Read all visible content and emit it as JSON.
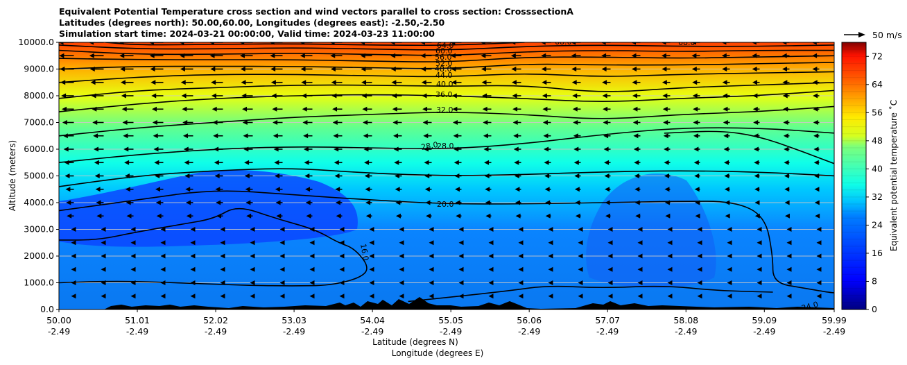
{
  "title_lines": [
    "Equivalent Potential Temperature cross section and wind vectors parallel to cross section: CrosssectionA",
    "Latitudes (degrees north): 50.00,60.00, Longitudes (degrees east): -2.50,-2.50",
    "Simulation start time: 2024-03-21 00:00:00, Valid time: 2024-03-23 11:00:00"
  ],
  "chart_data": {
    "type": "heatmap",
    "xlabel_lines": [
      "Latitude (degrees N)",
      "Longitude (degrees E)"
    ],
    "ylabel": "Altitude (meters)",
    "x_ticks": [
      {
        "lat": "50.00",
        "lon": "-2.49"
      },
      {
        "lat": "51.01",
        "lon": "-2.49"
      },
      {
        "lat": "52.02",
        "lon": "-2.49"
      },
      {
        "lat": "53.03",
        "lon": "-2.49"
      },
      {
        "lat": "54.04",
        "lon": "-2.49"
      },
      {
        "lat": "55.05",
        "lon": "-2.49"
      },
      {
        "lat": "56.06",
        "lon": "-2.49"
      },
      {
        "lat": "57.07",
        "lon": "-2.49"
      },
      {
        "lat": "58.08",
        "lon": "-2.49"
      },
      {
        "lat": "59.09",
        "lon": "-2.49"
      },
      {
        "lat": "59.99",
        "lon": "-2.49"
      }
    ],
    "y_ticks": [
      "0.0",
      "1000.0",
      "2000.0",
      "3000.0",
      "4000.0",
      "5000.0",
      "6000.0",
      "7000.0",
      "8000.0",
      "9000.0",
      "10000.0"
    ],
    "ylim": [
      0,
      10000
    ],
    "grid": "horizontal",
    "colorbar": {
      "label": "Equivalent potential temperature ˚C",
      "ticks": [
        "0",
        "8",
        "16",
        "24",
        "32",
        "40",
        "48",
        "56",
        "64",
        "72"
      ],
      "range": [
        0,
        76
      ],
      "colormap": "jet"
    },
    "quiver_key": {
      "label": "50 m/s"
    },
    "contour_labels": [
      "64.0",
      "60.0",
      "56.0",
      "52.0",
      "48.0",
      "44.0",
      "40.0",
      "36.0",
      "32.0",
      "28.0",
      "20.0",
      "16.0",
      "24.0",
      "68.0"
    ],
    "contour_profiles": [
      {
        "level": 16,
        "points": [
          [
            50.0,
            1000
          ],
          [
            50.5,
            1050
          ],
          [
            51.0,
            1050
          ],
          [
            51.5,
            1000
          ],
          [
            52.0,
            950
          ],
          [
            52.5,
            900
          ],
          [
            53.0,
            880
          ],
          [
            53.5,
            900
          ],
          [
            53.9,
            1200
          ],
          [
            54.0,
            1600
          ],
          [
            53.8,
            2300
          ],
          [
            53.6,
            2500
          ],
          [
            53.3,
            3000
          ],
          [
            52.8,
            3400
          ],
          [
            52.3,
            3900
          ],
          [
            52.0,
            3400
          ],
          [
            51.6,
            3200
          ],
          [
            51.0,
            2900
          ],
          [
            50.5,
            2600
          ],
          [
            50.0,
            2600
          ]
        ]
      },
      {
        "level": 20,
        "points": [
          [
            50.0,
            3700
          ],
          [
            51.0,
            4100
          ],
          [
            52.0,
            4500
          ],
          [
            53.0,
            4300
          ],
          [
            54.0,
            4100
          ],
          [
            55.0,
            3950
          ],
          [
            56.0,
            3950
          ],
          [
            57.0,
            4000
          ],
          [
            58.0,
            4050
          ],
          [
            58.7,
            4050
          ],
          [
            59.1,
            3500
          ],
          [
            59.2,
            2000
          ],
          [
            59.2,
            1000
          ],
          [
            59.6,
            800
          ],
          [
            59.9,
            650
          ],
          [
            60.0,
            620
          ]
        ]
      },
      {
        "level": 20,
        "points": [
          [
            54.5,
            300
          ],
          [
            55.0,
            450
          ],
          [
            55.8,
            700
          ],
          [
            56.3,
            900
          ],
          [
            57.0,
            800
          ],
          [
            57.8,
            900
          ],
          [
            58.5,
            700
          ],
          [
            59.2,
            650
          ]
        ]
      },
      {
        "level": 24,
        "points": [
          [
            50.0,
            4600
          ],
          [
            51.0,
            5000
          ],
          [
            52.0,
            5200
          ],
          [
            53.0,
            5300
          ],
          [
            54.0,
            5100
          ],
          [
            55.0,
            5000
          ],
          [
            56.0,
            5050
          ],
          [
            57.0,
            5150
          ],
          [
            58.0,
            5200
          ],
          [
            59.0,
            5150
          ],
          [
            60.0,
            5000
          ]
        ]
      },
      {
        "level": 24,
        "points": [
          [
            57.8,
            6600
          ],
          [
            58.5,
            6700
          ],
          [
            59.0,
            6500
          ],
          [
            59.5,
            6000
          ],
          [
            60.0,
            5450
          ]
        ]
      },
      {
        "level": 28,
        "points": [
          [
            50.0,
            5500
          ],
          [
            51.0,
            5800
          ],
          [
            52.0,
            6000
          ],
          [
            53.0,
            6100
          ],
          [
            54.0,
            6050
          ],
          [
            55.0,
            6000
          ],
          [
            56.0,
            6200
          ],
          [
            57.0,
            6550
          ],
          [
            58.0,
            6800
          ],
          [
            59.0,
            6800
          ],
          [
            60.0,
            6600
          ]
        ]
      },
      {
        "level": 32,
        "points": [
          [
            50.0,
            6500
          ],
          [
            51.0,
            6800
          ],
          [
            52.0,
            7000
          ],
          [
            53.0,
            7200
          ],
          [
            54.0,
            7300
          ],
          [
            55.0,
            7400
          ],
          [
            56.0,
            7300
          ],
          [
            57.0,
            7100
          ],
          [
            58.0,
            7300
          ],
          [
            59.0,
            7400
          ],
          [
            60.0,
            7600
          ]
        ]
      },
      {
        "level": 36,
        "points": [
          [
            50.0,
            7400
          ],
          [
            51.0,
            7700
          ],
          [
            52.0,
            7900
          ],
          [
            53.0,
            8000
          ],
          [
            54.0,
            8050
          ],
          [
            55.0,
            8000
          ],
          [
            56.0,
            7900
          ],
          [
            57.0,
            7750
          ],
          [
            58.0,
            7900
          ],
          [
            59.0,
            8000
          ],
          [
            60.0,
            8200
          ]
        ]
      },
      {
        "level": 40,
        "points": [
          [
            50.0,
            7900
          ],
          [
            51.0,
            8200
          ],
          [
            52.0,
            8300
          ],
          [
            53.0,
            8400
          ],
          [
            54.0,
            8400
          ],
          [
            55.0,
            8350
          ],
          [
            56.0,
            8400
          ],
          [
            57.0,
            8100
          ],
          [
            58.0,
            8300
          ],
          [
            59.0,
            8400
          ],
          [
            60.0,
            8500
          ]
        ]
      },
      {
        "level": 44,
        "points": [
          [
            50.0,
            8500
          ],
          [
            51.0,
            8700
          ],
          [
            52.0,
            8800
          ],
          [
            53.0,
            8800
          ],
          [
            54.0,
            8750
          ],
          [
            55.0,
            8700
          ],
          [
            56.0,
            8850
          ],
          [
            57.0,
            8700
          ],
          [
            58.0,
            8800
          ],
          [
            59.0,
            8850
          ],
          [
            60.0,
            8900
          ]
        ]
      },
      {
        "level": 48,
        "points": [
          [
            50.0,
            9000
          ],
          [
            51.0,
            9100
          ],
          [
            52.0,
            9100
          ],
          [
            53.0,
            9100
          ],
          [
            54.0,
            9050
          ],
          [
            55.0,
            9000
          ],
          [
            56.0,
            9200
          ],
          [
            57.0,
            9150
          ],
          [
            58.0,
            9150
          ],
          [
            59.0,
            9200
          ],
          [
            60.0,
            9250
          ]
        ]
      },
      {
        "level": 52,
        "points": [
          [
            50.0,
            9400
          ],
          [
            51.0,
            9350
          ],
          [
            52.0,
            9350
          ],
          [
            53.0,
            9350
          ],
          [
            54.0,
            9300
          ],
          [
            55.0,
            9250
          ],
          [
            56.0,
            9450
          ],
          [
            57.0,
            9450
          ],
          [
            58.0,
            9400
          ],
          [
            59.0,
            9450
          ],
          [
            60.0,
            9500
          ]
        ]
      },
      {
        "level": 56,
        "points": [
          [
            50.0,
            9700
          ],
          [
            51.0,
            9550
          ],
          [
            52.0,
            9550
          ],
          [
            53.0,
            9600
          ],
          [
            54.0,
            9550
          ],
          [
            55.0,
            9500
          ],
          [
            56.0,
            9650
          ],
          [
            57.0,
            9700
          ],
          [
            58.0,
            9650
          ],
          [
            59.0,
            9700
          ],
          [
            60.0,
            9700
          ]
        ]
      },
      {
        "level": 60,
        "points": [
          [
            50.0,
            9900
          ],
          [
            51.0,
            9750
          ],
          [
            52.0,
            9750
          ],
          [
            53.0,
            9800
          ],
          [
            54.0,
            9750
          ],
          [
            55.0,
            9700
          ],
          [
            56.0,
            9850
          ],
          [
            57.0,
            9900
          ],
          [
            58.0,
            9850
          ],
          [
            59.0,
            9850
          ],
          [
            60.0,
            9900
          ]
        ]
      },
      {
        "level": 64,
        "points": [
          [
            50.6,
            10000
          ],
          [
            51.0,
            9900
          ],
          [
            52.0,
            9920
          ],
          [
            53.0,
            9950
          ],
          [
            54.0,
            9900
          ],
          [
            55.0,
            9880
          ],
          [
            56.0,
            10000
          ]
        ]
      }
    ]
  }
}
